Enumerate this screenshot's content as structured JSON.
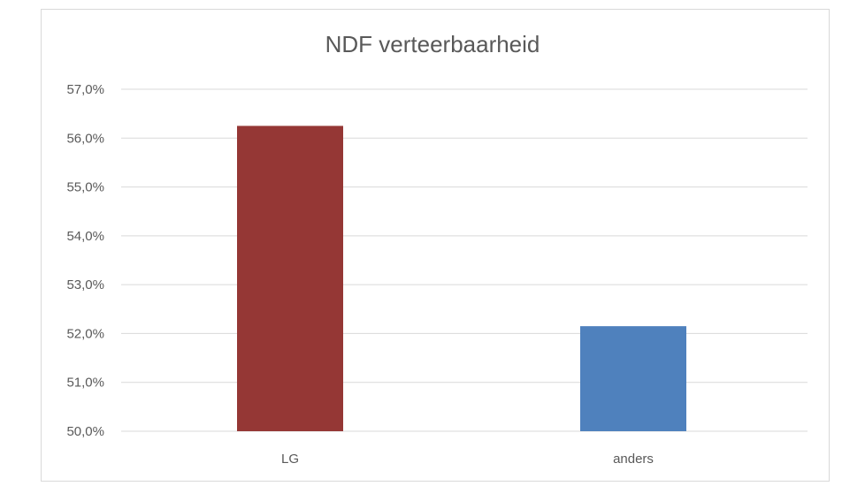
{
  "chart_data": {
    "type": "bar",
    "title": "NDF verteerbaarheid",
    "categories": [
      "LG",
      "anders"
    ],
    "values": [
      56.25,
      52.15
    ],
    "value_format": "percent",
    "ylim": [
      50.0,
      57.0
    ],
    "yticks": [
      50.0,
      51.0,
      52.0,
      53.0,
      54.0,
      55.0,
      56.0,
      57.0
    ],
    "ytick_labels": [
      "50,0%",
      "51,0%",
      "52,0%",
      "53,0%",
      "54,0%",
      "55,0%",
      "56,0%",
      "57,0%"
    ],
    "bar_colors": [
      "#953735",
      "#4f81bd"
    ],
    "grid": true,
    "legend": false,
    "colors": {
      "grid": "#d9d9d9",
      "text": "#595959"
    }
  }
}
